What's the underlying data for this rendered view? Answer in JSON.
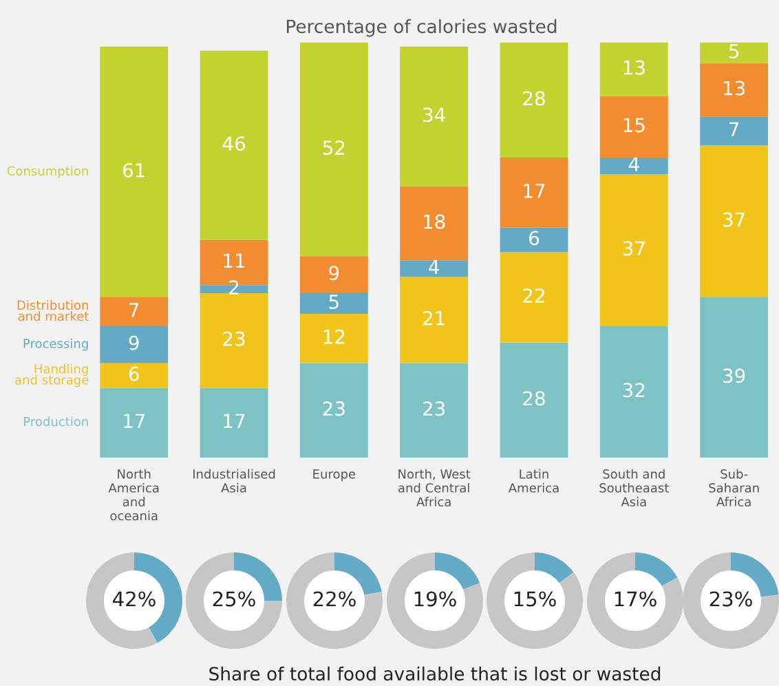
{
  "chart_data": [
    {
      "type": "bar",
      "title": "Percentage of calories wasted",
      "stacked": true,
      "data_labels": true,
      "legend": "left",
      "tick_labels": "x",
      "categories": [
        "North\nAmerica\nand\noceania",
        "Industrialised\nAsia",
        "Europe",
        "North, West\nand Central\nAfrica",
        "Latin\nAmerica",
        "South and\nSoutheaast\nAsia",
        "Sub-\nSaharan\nAfrica"
      ],
      "series": [
        {
          "name": "Production",
          "color": "#7dc3c3",
          "values": [
            17,
            17,
            23,
            23,
            28,
            32,
            39
          ]
        },
        {
          "name": "Handling\nand storage",
          "color": "#f0c419",
          "values": [
            6,
            23,
            12,
            21,
            22,
            37,
            37
          ]
        },
        {
          "name": "Processing",
          "color": "#62aac6",
          "values": [
            9,
            2,
            5,
            4,
            6,
            4,
            7
          ]
        },
        {
          "name": "Distribution\nand market",
          "color": "#f28c30",
          "values": [
            7,
            11,
            9,
            18,
            17,
            15,
            13
          ]
        },
        {
          "name": "Consumption",
          "color": "#c2d22e",
          "values": [
            61,
            46,
            52,
            34,
            28,
            13,
            5
          ]
        }
      ]
    },
    {
      "type": "donut",
      "categories": [
        null,
        null
      ],
      "values": [
        42,
        58
      ],
      "colors": [
        "#62aac6",
        "#c6c6c6"
      ],
      "value_labels": [
        "42%",
        null
      ]
    },
    {
      "type": "donut",
      "categories": [
        null,
        null
      ],
      "values": [
        25,
        75
      ],
      "colors": [
        "#62aac6",
        "#c6c6c6"
      ],
      "value_labels": [
        "25%",
        null
      ]
    },
    {
      "type": "donut",
      "categories": [
        null,
        null
      ],
      "values": [
        22,
        78
      ],
      "colors": [
        "#62aac6",
        "#c6c6c6"
      ],
      "value_labels": [
        "22%",
        null
      ]
    },
    {
      "type": "donut",
      "title": "Share of total food available that is lost or wasted",
      "categories": [
        null,
        null
      ],
      "values": [
        19,
        81
      ],
      "colors": [
        "#62aac6",
        "#c6c6c6"
      ],
      "value_labels": [
        "19%",
        null
      ]
    },
    {
      "type": "donut",
      "categories": [
        null,
        null
      ],
      "values": [
        15,
        85
      ],
      "colors": [
        "#62aac6",
        "#c6c6c6"
      ],
      "value_labels": [
        "15%",
        null
      ]
    },
    {
      "type": "donut",
      "categories": [
        null,
        null
      ],
      "values": [
        17,
        83
      ],
      "colors": [
        "#62aac6",
        "#c6c6c6"
      ],
      "value_labels": [
        "17%",
        null
      ]
    },
    {
      "type": "donut",
      "categories": [
        null,
        null
      ],
      "values": [
        23,
        77
      ],
      "colors": [
        "#62aac6",
        "#c6c6c6"
      ],
      "value_labels": [
        "23%",
        null
      ]
    }
  ]
}
